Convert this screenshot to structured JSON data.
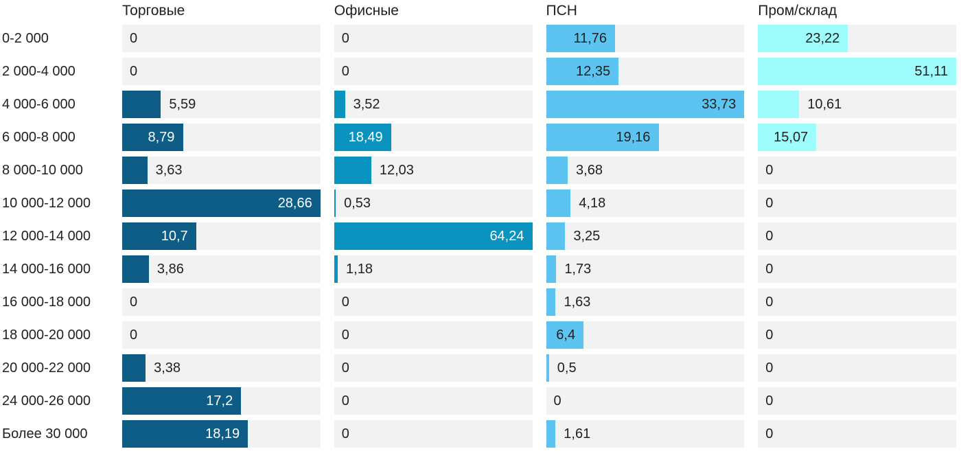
{
  "chart_data": {
    "type": "bar",
    "orientation": "horizontal",
    "title": "",
    "xlabel": "",
    "ylabel": "",
    "grid": false,
    "legend_position": "column-headers",
    "scale_note": "each column is scaled independently so its max value fills the track",
    "value_format": "russian decimal comma",
    "track_color": "#f2f2f2",
    "text_color": "#212121",
    "categories": [
      "0-2 000",
      "2 000-4 000",
      "4 000-6 000",
      "6 000-8 000",
      "8 000-10 000",
      "10 000-12 000",
      "12 000-14 000",
      "14 000-16 000",
      "16 000-18 000",
      "18 000-20 000",
      "20 000-22 000",
      "24 000-26 000",
      "Более 30 000"
    ],
    "series": [
      {
        "name": "Торговые",
        "color": "#0d5d87",
        "inside_label_color": "#ffffff",
        "values": [
          0,
          0,
          5.59,
          8.79,
          3.63,
          28.66,
          10.7,
          3.86,
          0,
          0,
          3.38,
          17.2,
          18.19
        ],
        "labels": [
          "0",
          "0",
          "5,59",
          "8,79",
          "3,63",
          "28,66",
          "10,7",
          "3,86",
          "0",
          "0",
          "3,38",
          "17,2",
          "18,19"
        ]
      },
      {
        "name": "Офисные",
        "color": "#0b93bf",
        "inside_label_color": "#ffffff",
        "values": [
          0,
          0,
          3.52,
          18.49,
          12.03,
          0.53,
          64.24,
          1.18,
          0,
          0,
          0,
          0,
          0
        ],
        "labels": [
          "0",
          "0",
          "3,52",
          "18,49",
          "12,03",
          "0,53",
          "64,24",
          "1,18",
          "0",
          "0",
          "0",
          "0",
          "0"
        ]
      },
      {
        "name": "ПСН",
        "color": "#5bc4f0",
        "inside_label_color": "#212121",
        "values": [
          11.76,
          12.35,
          33.73,
          19.16,
          3.68,
          4.18,
          3.25,
          1.73,
          1.63,
          6.4,
          0.5,
          0,
          1.61
        ],
        "labels": [
          "11,76",
          "12,35",
          "33,73",
          "19,16",
          "3,68",
          "4,18",
          "3,25",
          "1,73",
          "1,63",
          "6,4",
          "0,5",
          "0",
          "1,61"
        ]
      },
      {
        "name": "Пром/склад",
        "color": "#9efcfd",
        "inside_label_color": "#212121",
        "values": [
          23.22,
          51.11,
          10.61,
          15.07,
          0,
          0,
          0,
          0,
          0,
          0,
          0,
          0,
          0
        ],
        "labels": [
          "23,22",
          "51,11",
          "10,61",
          "15,07",
          "0",
          "0",
          "0",
          "0",
          "0",
          "0",
          "0",
          "0",
          "0"
        ]
      }
    ]
  }
}
